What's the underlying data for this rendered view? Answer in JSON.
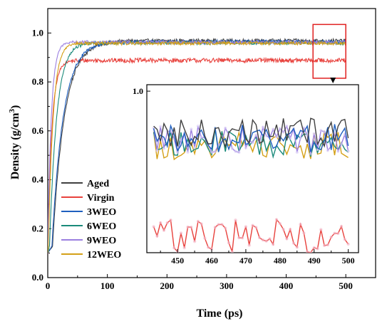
{
  "chart_data": {
    "type": "line",
    "xlabel": "Time (ps)",
    "ylabel": "Density (g/cm³)",
    "ylabel_base": "Density (g/cm",
    "ylabel_sup": "3",
    "ylabel_close": ")",
    "xlim": [
      0,
      550
    ],
    "ylim": [
      0.0,
      1.1
    ],
    "xticks": [
      0,
      100,
      200,
      300,
      400,
      500
    ],
    "yticks": [
      0.0,
      0.2,
      0.4,
      0.6,
      0.8,
      1.0
    ],
    "xtick_labels": [
      "0",
      "100",
      "200",
      "300",
      "400",
      "500"
    ],
    "ytick_labels": [
      "0.0",
      "0.2",
      "0.4",
      "0.6",
      "0.8",
      "1.0"
    ],
    "legend_position": "bottom-left",
    "series": [
      {
        "name": "Aged",
        "color": "#404040",
        "start": 0.1,
        "tau": 20,
        "delay": 8,
        "plateau": 0.968,
        "noise": 0.008
      },
      {
        "name": "Virgin",
        "color": "#e8413c",
        "start": 0.1,
        "tau": 7,
        "delay": 0,
        "plateau": 0.888,
        "noise": 0.009
      },
      {
        "name": "3WEO",
        "color": "#1f5fbf",
        "start": 0.1,
        "tau": 19,
        "delay": 7,
        "plateau": 0.964,
        "noise": 0.007
      },
      {
        "name": "6WEO",
        "color": "#1a8a7a",
        "start": 0.1,
        "tau": 12,
        "delay": 3,
        "plateau": 0.96,
        "noise": 0.007
      },
      {
        "name": "9WEO",
        "color": "#9b7fe0",
        "start": 0.1,
        "tau": 6,
        "delay": 0,
        "plateau": 0.962,
        "noise": 0.007
      },
      {
        "name": "12WEO",
        "color": "#d4a017",
        "start": 0.1,
        "tau": 8,
        "delay": 1,
        "plateau": 0.958,
        "noise": 0.007
      }
    ],
    "inset": {
      "xlim": [
        441,
        503
      ],
      "ylim": [
        0.875,
        1.005
      ],
      "xticks": [
        450,
        460,
        470,
        480,
        490,
        500
      ],
      "xtick_labels": [
        "450",
        "460",
        "470",
        "480",
        "490",
        "500"
      ],
      "ytick": 1.0,
      "ytick_label": "1.0",
      "source_region_x": [
        445,
        500
      ],
      "source_region_y": [
        0.85,
        1.0
      ]
    }
  }
}
